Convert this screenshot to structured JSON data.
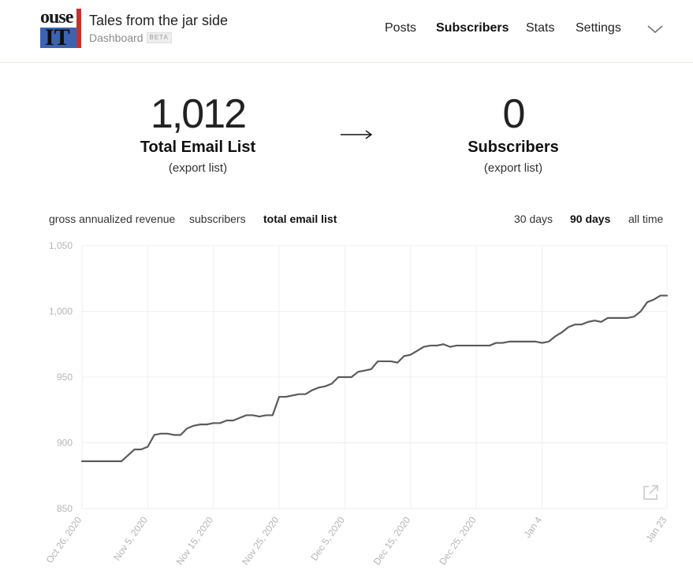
{
  "header": {
    "site_title": "Tales from the jar side",
    "subtitle": "Dashboard",
    "beta_badge": "BETA",
    "logo_text_top": "ouse",
    "logo_text_bottom": "IT",
    "nav": [
      {
        "label": "Posts",
        "active": false
      },
      {
        "label": "Subscribers",
        "active": true
      },
      {
        "label": "Stats",
        "active": false
      },
      {
        "label": "Settings",
        "active": false
      }
    ],
    "menu_icon": "chevron-down-icon"
  },
  "totals": {
    "email_list": {
      "count": "1,012",
      "label": "Total Email List",
      "export": "(export list)"
    },
    "arrow_icon": "long-right-arrow-icon",
    "subscribers": {
      "count": "0",
      "label": "Subscribers",
      "export": "(export list)"
    }
  },
  "metric_tabs": [
    {
      "label": "gross annualized revenue",
      "active": false
    },
    {
      "label": "subscribers",
      "active": false
    },
    {
      "label": "total email list",
      "active": true
    }
  ],
  "range_tabs": [
    {
      "label": "30 days",
      "active": false
    },
    {
      "label": "90 days",
      "active": true
    },
    {
      "label": "all time",
      "active": false
    }
  ],
  "colors": {
    "line": "#5b5b5b",
    "grid": "#efefef",
    "tick_text": "#b5b5b5",
    "header_border": "#ece7d6"
  },
  "chart_data": {
    "type": "line",
    "title": "",
    "xlabel": "",
    "ylabel": "",
    "ylim": [
      850,
      1050
    ],
    "yticks": [
      850,
      900,
      950,
      1000,
      1050
    ],
    "ytick_labels": [
      "850",
      "900",
      "950",
      "1,000",
      "1,050"
    ],
    "xlim": [
      "2020-10-26",
      "2021-01-23"
    ],
    "xticks": [
      {
        "date": "2020-10-26",
        "label": "Oct 26, 2020"
      },
      {
        "date": "2020-11-05",
        "label": "Nov 5, 2020"
      },
      {
        "date": "2020-11-15",
        "label": "Nov 15, 2020"
      },
      {
        "date": "2020-11-25",
        "label": "Nov 25, 2020"
      },
      {
        "date": "2020-12-05",
        "label": "Dec 5, 2020"
      },
      {
        "date": "2020-12-15",
        "label": "Dec 15, 2020"
      },
      {
        "date": "2020-12-25",
        "label": "Dec 25, 2020"
      },
      {
        "date": "2021-01-04",
        "label": "Jan 4"
      },
      {
        "date": "2021-01-23",
        "label": "Jan 23"
      }
    ],
    "grid": true,
    "legend": "none",
    "series": [
      {
        "points": [
          [
            "2020-10-26",
            886
          ],
          [
            "2020-11-01",
            886
          ],
          [
            "2020-11-03",
            895
          ],
          [
            "2020-11-04",
            895
          ],
          [
            "2020-11-05",
            897
          ],
          [
            "2020-11-06",
            906
          ],
          [
            "2020-11-07",
            907
          ],
          [
            "2020-11-08",
            907
          ],
          [
            "2020-11-09",
            906
          ],
          [
            "2020-11-10",
            906
          ],
          [
            "2020-11-11",
            911
          ],
          [
            "2020-11-12",
            913
          ],
          [
            "2020-11-13",
            914
          ],
          [
            "2020-11-14",
            914
          ],
          [
            "2020-11-15",
            915
          ],
          [
            "2020-11-16",
            915
          ],
          [
            "2020-11-17",
            917
          ],
          [
            "2020-11-18",
            917
          ],
          [
            "2020-11-19",
            919
          ],
          [
            "2020-11-20",
            921
          ],
          [
            "2020-11-21",
            921
          ],
          [
            "2020-11-22",
            920
          ],
          [
            "2020-11-23",
            921
          ],
          [
            "2020-11-24",
            921
          ],
          [
            "2020-11-25",
            935
          ],
          [
            "2020-11-26",
            935
          ],
          [
            "2020-11-27",
            936
          ],
          [
            "2020-11-28",
            937
          ],
          [
            "2020-11-29",
            937
          ],
          [
            "2020-11-30",
            940
          ],
          [
            "2020-12-01",
            942
          ],
          [
            "2020-12-02",
            943
          ],
          [
            "2020-12-03",
            945
          ],
          [
            "2020-12-04",
            950
          ],
          [
            "2020-12-05",
            950
          ],
          [
            "2020-12-06",
            950
          ],
          [
            "2020-12-07",
            954
          ],
          [
            "2020-12-08",
            955
          ],
          [
            "2020-12-09",
            956
          ],
          [
            "2020-12-10",
            962
          ],
          [
            "2020-12-11",
            962
          ],
          [
            "2020-12-12",
            962
          ],
          [
            "2020-12-13",
            961
          ],
          [
            "2020-12-14",
            966
          ],
          [
            "2020-12-15",
            967
          ],
          [
            "2020-12-16",
            970
          ],
          [
            "2020-12-17",
            973
          ],
          [
            "2020-12-18",
            974
          ],
          [
            "2020-12-19",
            974
          ],
          [
            "2020-12-20",
            975
          ],
          [
            "2020-12-21",
            973
          ],
          [
            "2020-12-22",
            974
          ],
          [
            "2020-12-27",
            974
          ],
          [
            "2020-12-28",
            976
          ],
          [
            "2020-12-29",
            976
          ],
          [
            "2020-12-30",
            977
          ],
          [
            "2021-01-03",
            977
          ],
          [
            "2021-01-04",
            976
          ],
          [
            "2021-01-05",
            977
          ],
          [
            "2021-01-06",
            981
          ],
          [
            "2021-01-07",
            984
          ],
          [
            "2021-01-08",
            988
          ],
          [
            "2021-01-09",
            990
          ],
          [
            "2021-01-10",
            990
          ],
          [
            "2021-01-11",
            992
          ],
          [
            "2021-01-12",
            993
          ],
          [
            "2021-01-13",
            992
          ],
          [
            "2021-01-14",
            995
          ],
          [
            "2021-01-17",
            995
          ],
          [
            "2021-01-18",
            996
          ],
          [
            "2021-01-19",
            1000
          ],
          [
            "2021-01-20",
            1007
          ],
          [
            "2021-01-21",
            1009
          ],
          [
            "2021-01-22",
            1012
          ],
          [
            "2021-01-23",
            1012
          ]
        ]
      }
    ]
  }
}
